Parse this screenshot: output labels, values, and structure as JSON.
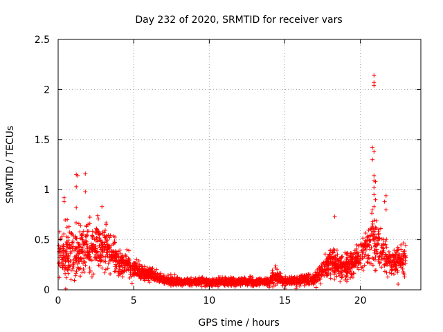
{
  "chart_data": {
    "type": "scatter",
    "title": "Day 232 of 2020, SRMTID for receiver vars",
    "xlabel": "GPS time / hours",
    "ylabel": "SRMTID / TECUs",
    "xlim": [
      0,
      24
    ],
    "ylim": [
      0,
      2.5
    ],
    "xticks": [
      0,
      5,
      10,
      15,
      20
    ],
    "xtick_labels": [
      "0",
      "5",
      "10",
      "15",
      "20"
    ],
    "yticks": [
      0,
      0.5,
      1,
      1.5,
      2,
      2.5
    ],
    "ytick_labels": [
      "0",
      "0.5",
      "1",
      "1.5",
      "2",
      "2.5"
    ],
    "grid": true,
    "marker": "+",
    "color": "#ff0000",
    "x_range_of_data": [
      0,
      23
    ],
    "envelope": [
      {
        "hour": 0.0,
        "median": 0.3,
        "spread": 0.18
      },
      {
        "hour": 1.0,
        "median": 0.38,
        "spread": 0.2
      },
      {
        "hour": 2.0,
        "median": 0.4,
        "spread": 0.2
      },
      {
        "hour": 3.0,
        "median": 0.42,
        "spread": 0.18
      },
      {
        "hour": 4.0,
        "median": 0.28,
        "spread": 0.12
      },
      {
        "hour": 5.0,
        "median": 0.2,
        "spread": 0.08
      },
      {
        "hour": 6.0,
        "median": 0.15,
        "spread": 0.06
      },
      {
        "hour": 7.0,
        "median": 0.1,
        "spread": 0.04
      },
      {
        "hour": 8.0,
        "median": 0.08,
        "spread": 0.03
      },
      {
        "hour": 10.0,
        "median": 0.08,
        "spread": 0.03
      },
      {
        "hour": 12.0,
        "median": 0.08,
        "spread": 0.03
      },
      {
        "hour": 14.0,
        "median": 0.08,
        "spread": 0.04
      },
      {
        "hour": 14.3,
        "median": 0.15,
        "spread": 0.06
      },
      {
        "hour": 15.0,
        "median": 0.08,
        "spread": 0.03
      },
      {
        "hour": 17.0,
        "median": 0.11,
        "spread": 0.05
      },
      {
        "hour": 18.0,
        "median": 0.28,
        "spread": 0.12
      },
      {
        "hour": 19.0,
        "median": 0.22,
        "spread": 0.1
      },
      {
        "hour": 20.0,
        "median": 0.35,
        "spread": 0.12
      },
      {
        "hour": 20.8,
        "median": 0.5,
        "spread": 0.2
      },
      {
        "hour": 21.5,
        "median": 0.4,
        "spread": 0.15
      },
      {
        "hour": 22.0,
        "median": 0.25,
        "spread": 0.1
      },
      {
        "hour": 23.0,
        "median": 0.3,
        "spread": 0.12
      }
    ],
    "notable_points": [
      {
        "x": 1.2,
        "y": 1.15
      },
      {
        "x": 1.3,
        "y": 1.14
      },
      {
        "x": 1.8,
        "y": 1.16
      },
      {
        "x": 1.2,
        "y": 1.03
      },
      {
        "x": 1.8,
        "y": 0.98
      },
      {
        "x": 0.4,
        "y": 0.92
      },
      {
        "x": 0.4,
        "y": 0.88
      },
      {
        "x": 2.9,
        "y": 0.83
      },
      {
        "x": 1.2,
        "y": 0.82
      },
      {
        "x": 18.3,
        "y": 0.73
      },
      {
        "x": 20.9,
        "y": 2.14
      },
      {
        "x": 20.9,
        "y": 2.07
      },
      {
        "x": 20.9,
        "y": 2.04
      },
      {
        "x": 20.8,
        "y": 1.42
      },
      {
        "x": 20.9,
        "y": 1.38
      },
      {
        "x": 20.8,
        "y": 1.3
      },
      {
        "x": 20.9,
        "y": 1.14
      },
      {
        "x": 20.9,
        "y": 1.09
      },
      {
        "x": 21.0,
        "y": 1.08
      },
      {
        "x": 20.9,
        "y": 1.02
      },
      {
        "x": 20.9,
        "y": 0.95
      },
      {
        "x": 21.0,
        "y": 0.9
      },
      {
        "x": 21.7,
        "y": 0.94
      },
      {
        "x": 21.6,
        "y": 0.88
      },
      {
        "x": 20.9,
        "y": 0.83
      },
      {
        "x": 21.7,
        "y": 0.8
      },
      {
        "x": 0.6,
        "y": 0.7
      },
      {
        "x": 0.1,
        "y": 0.58
      },
      {
        "x": 14.4,
        "y": 0.24
      },
      {
        "x": 0.5,
        "y": 0.01
      }
    ]
  }
}
